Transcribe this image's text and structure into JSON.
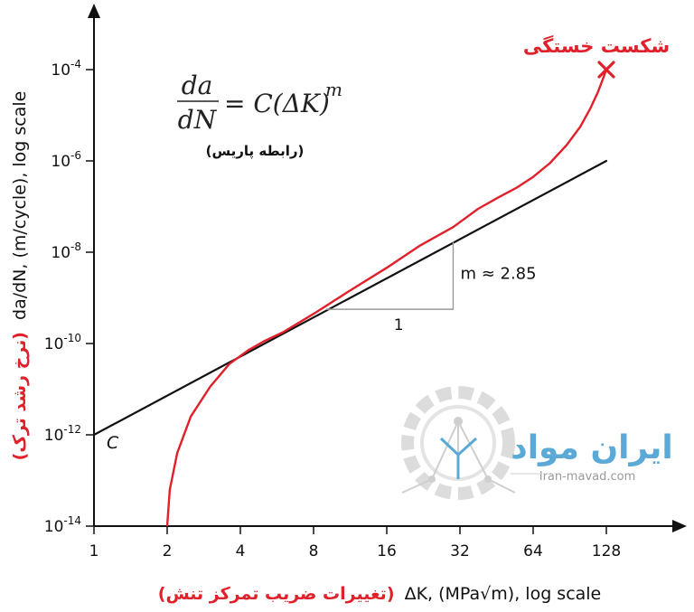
{
  "chart_data": {
    "type": "line",
    "x_scale": "log2",
    "y_scale": "log10",
    "xlabel_fa": "(تغییرات ضریب تمرکز تنش)",
    "xlabel_en": "ΔK, (MPa√m), log scale",
    "ylabel_fa": "(نرخ رشد ترک)",
    "ylabel_en": "da/dN, (m/cycle), log scale",
    "x_ticks": [
      1,
      2,
      4,
      8,
      16,
      32,
      64,
      128
    ],
    "y_ticks": [
      {
        "exp": -14,
        "base": "10",
        "sup": "-14"
      },
      {
        "exp": -12,
        "base": "10",
        "sup": "-12"
      },
      {
        "exp": -10,
        "base": "10",
        "sup": "-10"
      },
      {
        "exp": -8,
        "base": "10",
        "sup": "-8"
      },
      {
        "exp": -6,
        "base": "10",
        "sup": "-6"
      },
      {
        "exp": -4,
        "base": "10",
        "sup": "-4"
      }
    ],
    "xlim": [
      1,
      400
    ],
    "ylim_exp": [
      -14,
      -3
    ],
    "series": [
      {
        "role": "paris-law-line",
        "color": "#111111",
        "points": [
          [
            1,
            -12
          ],
          [
            128,
            -6
          ]
        ]
      },
      {
        "role": "crack-growth-curve",
        "color": "#e0202a",
        "points": [
          [
            2,
            -14
          ],
          [
            2.05,
            -13.2
          ],
          [
            2.2,
            -12.4
          ],
          [
            2.5,
            -11.6
          ],
          [
            3.0,
            -10.95
          ],
          [
            3.6,
            -10.45
          ],
          [
            4.3,
            -10.15
          ],
          [
            5.0,
            -9.95
          ],
          [
            6.0,
            -9.75
          ],
          [
            8.0,
            -9.35
          ],
          [
            11,
            -8.88
          ],
          [
            16,
            -8.34
          ],
          [
            22,
            -7.85
          ],
          [
            30,
            -7.45
          ],
          [
            38,
            -7.05
          ],
          [
            46,
            -6.8
          ],
          [
            55,
            -6.58
          ],
          [
            64,
            -6.35
          ],
          [
            75,
            -6.05
          ],
          [
            88,
            -5.65
          ],
          [
            100,
            -5.25
          ],
          [
            110,
            -4.85
          ],
          [
            118,
            -4.5
          ],
          [
            124,
            -4.2
          ],
          [
            128,
            -4.0
          ]
        ]
      }
    ],
    "slope_triangle": {
      "x": [
        9,
        30
      ],
      "y_exp": [
        -9.25
      ],
      "run_label": "1",
      "slope_label": "m ≈ 2.85"
    },
    "annotations": {
      "fracture_label": "شکست خستگی",
      "fracture_point": [
        128,
        -4.0
      ],
      "c_label": "C",
      "equation_label": "(رابطه پاریس)"
    }
  },
  "watermark": {
    "name": "ایران مواد",
    "site": "Iran-mavad.com",
    "accent": "#5aa9d6",
    "gear_color": "#d8d8d8"
  }
}
